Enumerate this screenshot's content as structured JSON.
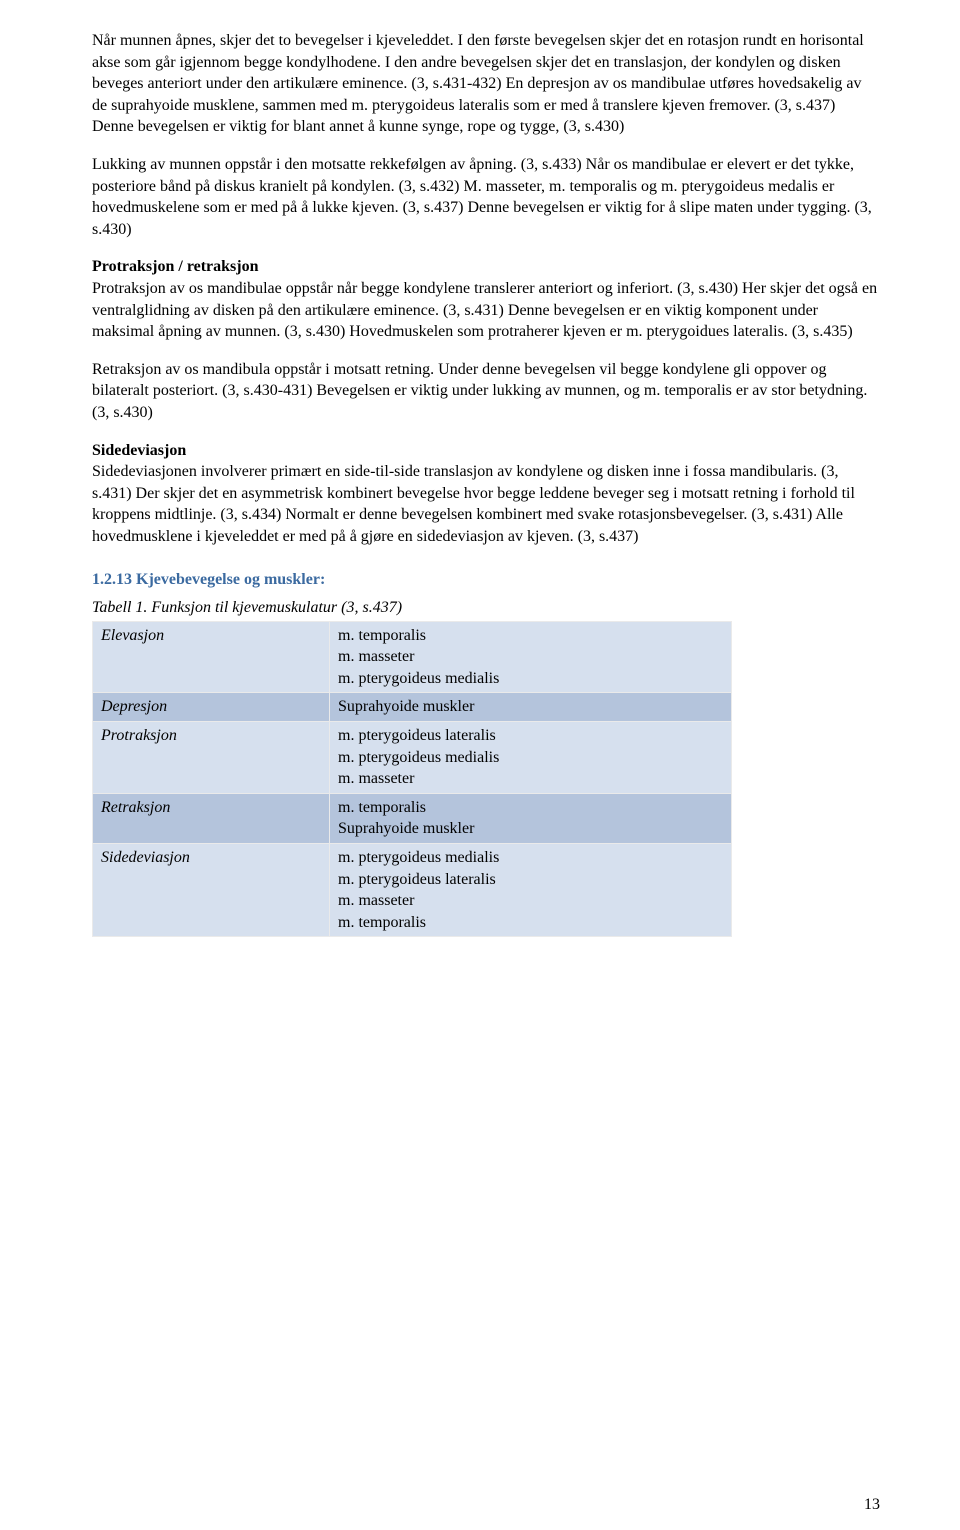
{
  "paragraphs": {
    "p1": "Når munnen åpnes, skjer det to bevegelser i kjeveleddet. I den første bevegelsen skjer det en rotasjon rundt en horisontal akse som går igjennom begge kondylhodene. I den andre bevegelsen skjer det en translasjon, der kondylen og disken beveges anteriort under den artikulære eminence. (3, s.431-432) En depresjon av os mandibulae utføres hovedsakelig av de suprahyoide musklene, sammen med m. pterygoideus lateralis som er med å translere kjeven fremover. (3, s.437) Denne bevegelsen er viktig for blant annet å kunne synge, rope og tygge, (3, s.430)",
    "p2": "Lukking av munnen oppstår i den motsatte rekkefølgen av åpning. (3, s.433) Når os mandibulae er elevert er det tykke, posteriore bånd på diskus kranielt på kondylen. (3, s.432) M. masseter,  m. temporalis og m. pterygoideus medalis er hovedmuskelene som er med på å lukke kjeven. (3, s.437) Denne bevegelsen er viktig for å slipe maten under tygging. (3, s.430)",
    "p3_heading": "Protraksjon / retraksjon",
    "p3": "Protraksjon av os mandibulae oppstår når begge kondylene translerer anteriort og inferiort. (3, s.430) Her skjer det også en ventralglidning av disken på den artikulære eminence. (3, s.431) Denne bevegelsen er en viktig komponent under maksimal åpning av munnen. (3, s.430) Hovedmuskelen som protraherer kjeven er m. pterygoidues lateralis. (3, s.435)",
    "p4": "Retraksjon av os mandibula oppstår i motsatt retning. Under denne bevegelsen vil begge kondylene gli oppover og bilateralt posteriort. (3, s.430-431) Bevegelsen er viktig under lukking av munnen, og m. temporalis er av stor betydning. (3, s.430)",
    "p5_heading": "Sidedeviasjon",
    "p5": "Sidedeviasjonen involverer primært en side-til-side translasjon av kondylene og disken inne i fossa mandibularis. (3, s.431) Der skjer det en asymmetrisk kombinert bevegelse hvor begge leddene beveger seg i motsatt retning i forhold til kroppens midtlinje. (3, s.434) Normalt er denne bevegelsen kombinert med svake rotasjonsbevegelser. (3, s.431) Alle hovedmusklene i kjeveleddet er med på å gjøre en sidedeviasjon av kjeven. (3, s.437)"
  },
  "section_title": "1.2.13 Kjevebevegelse og muskler:",
  "table": {
    "caption": "Tabell 1. Funksjon til kjevemuskulatur (3, s.437)",
    "rows": [
      {
        "label": "Elevasjon",
        "value": "m. temporalis\nm. masseter\nm. pterygoideus medialis",
        "class": "header"
      },
      {
        "label": "Depresjon",
        "value": "Suprahyoide muskler",
        "class": "odd"
      },
      {
        "label": "Protraksjon",
        "value": "m. pterygoideus lateralis\nm. pterygoideus medialis\nm. masseter",
        "class": "even"
      },
      {
        "label": "Retraksjon",
        "value": "m. temporalis\nSuprahyoide muskler",
        "class": "odd"
      },
      {
        "label": "Sidedeviasjon",
        "value": "m. pterygoideus medialis\nm. pterygoideus lateralis\nm. masseter\nm. temporalis",
        "class": "even"
      }
    ]
  },
  "page_number": "13",
  "colors": {
    "heading": "#3b6aa0",
    "table_header_bg": "#d6e0ee",
    "table_odd_bg": "#b4c4dc",
    "table_even_bg": "#d6e0ee",
    "table_border": "#eaeaea"
  }
}
